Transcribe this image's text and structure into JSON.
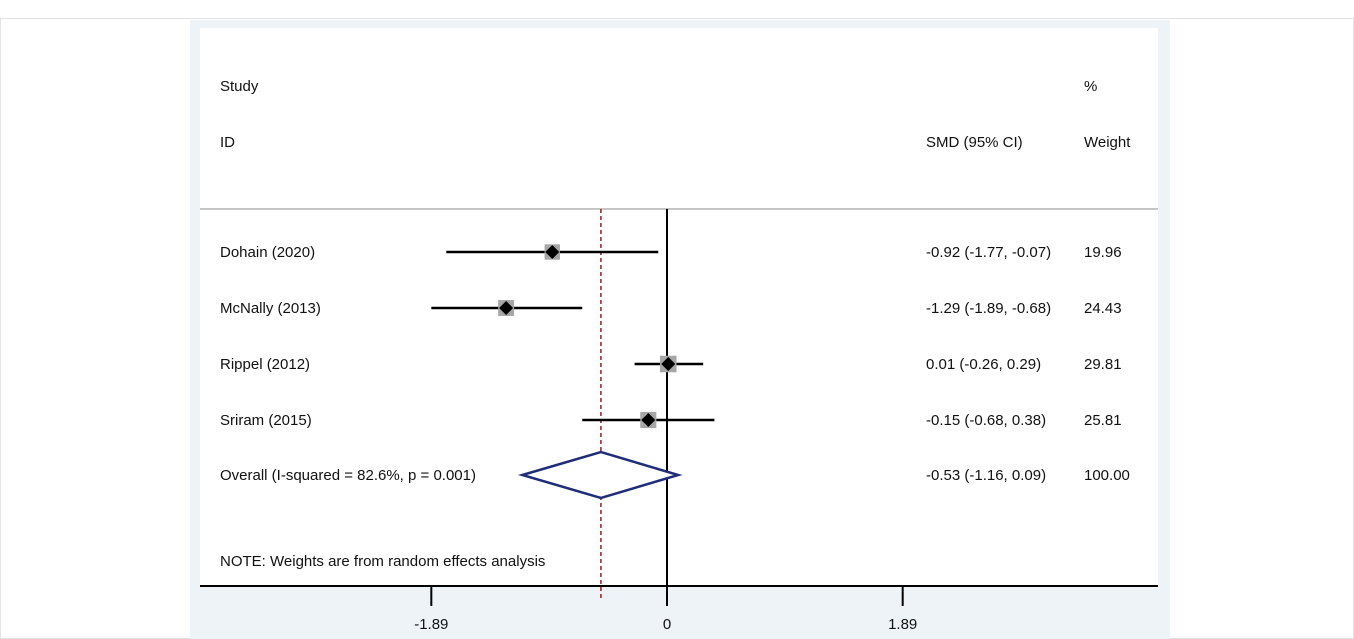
{
  "chart_data": {
    "type": "forest",
    "header": {
      "study_line1": "Study",
      "study_line2": "ID",
      "effect_label": "SMD (95% CI)",
      "weight_line1": "%",
      "weight_line2": "Weight"
    },
    "studies": [
      {
        "label": "Dohain (2020)",
        "smd": -0.92,
        "lo": -1.77,
        "hi": -0.07,
        "ci_text": "-0.92 (-1.77, -0.07)",
        "weight": 19.96,
        "weight_text": "19.96"
      },
      {
        "label": "McNally (2013)",
        "smd": -1.29,
        "lo": -1.89,
        "hi": -0.68,
        "ci_text": "-1.29 (-1.89, -0.68)",
        "weight": 24.43,
        "weight_text": "24.43"
      },
      {
        "label": "Rippel (2012)",
        "smd": 0.01,
        "lo": -0.26,
        "hi": 0.29,
        "ci_text": "0.01 (-0.26, 0.29)",
        "weight": 29.81,
        "weight_text": "29.81"
      },
      {
        "label": "Sriram (2015)",
        "smd": -0.15,
        "lo": -0.68,
        "hi": 0.38,
        "ci_text": "-0.15 (-0.68, 0.38)",
        "weight": 25.81,
        "weight_text": "25.81"
      }
    ],
    "overall": {
      "label": "Overall  (I-squared = 82.6%, p = 0.001)",
      "smd": -0.53,
      "lo": -1.16,
      "hi": 0.09,
      "ci_text": "-0.53 (-1.16, 0.09)",
      "weight_text": "100.00"
    },
    "note": "NOTE: Weights are from random effects analysis",
    "x_ticks": [
      {
        "value": -1.89,
        "label": "-1.89"
      },
      {
        "value": 0,
        "label": "0"
      },
      {
        "value": 1.89,
        "label": "1.89"
      }
    ],
    "null_line": 0,
    "colors": {
      "panel": "#eef3f8",
      "line": "#000000",
      "marker_box": "#a6a6a6",
      "overall_diamond": "#1f2d7a",
      "pooled_line": "#9b1c1c"
    }
  }
}
